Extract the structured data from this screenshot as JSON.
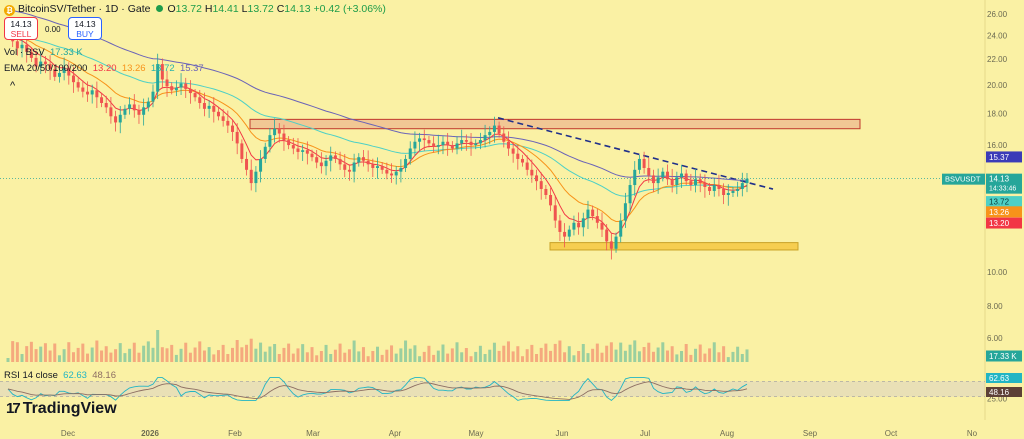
{
  "header": {
    "symbol": "BitcoinSV/Tether · 1D · Gate",
    "open_label": "O",
    "open": "13.72",
    "high_label": "H",
    "high": "14.41",
    "low_label": "L",
    "low": "13.72",
    "close_label": "C",
    "close": "14.13",
    "change": "+0.42 (+3.06%)"
  },
  "trade": {
    "sell_price": "14.13",
    "sell_label": "SELL",
    "buy_price": "14.13",
    "buy_label": "BUY",
    "spread": "0.00"
  },
  "indicators": {
    "vol_label": "Vol · BSV",
    "vol_value": "17.33 K",
    "ema_label": "EMA 20/50/100/200",
    "ema20": "13.20",
    "ema50": "13.26",
    "ema100": "13.72",
    "ema200": "15.37",
    "rsi_label": "RSI 14 close",
    "rsi_value": "62.63",
    "rsi_ma": "48.16"
  },
  "brand": "TradingView",
  "colors": {
    "background": "#faf1a4",
    "up": "#26a69a",
    "down": "#ef5350",
    "ema20": "#f23645",
    "ema50": "#f7931a",
    "ema100": "#4dd0c6",
    "ema200": "#6a63b8",
    "rsi": "#22b5c4",
    "rsi_ma": "#8d6e63",
    "trendline": "#1f2f8a",
    "resistance_box": "#d98a8a",
    "support_box": "#f5c842"
  },
  "chart_data": [
    {
      "type": "candlestick",
      "title": "",
      "y_axis": {
        "ticks": [
          "26.00",
          "24.00",
          "22.00",
          "20.00",
          "18.00",
          "16.00",
          "12.00",
          "10.00",
          "8.00",
          "6.00"
        ],
        "scale": "log"
      },
      "x_axis": {
        "ticks": [
          "Dec",
          "2026",
          "Feb",
          "Mar",
          "Apr",
          "May",
          "Jun",
          "Jul",
          "Aug",
          "Sep",
          "Oct",
          "No"
        ]
      },
      "price_labels": [
        {
          "text": "15.37",
          "series": "ema200"
        },
        {
          "text": "BSVUSDT",
          "series": "last"
        },
        {
          "text": "14.13",
          "series": "last"
        },
        {
          "text": "14:33:46",
          "series": "countdown"
        },
        {
          "text": "13.72",
          "series": "ema100"
        },
        {
          "text": "13.26",
          "series": "ema50"
        },
        {
          "text": "13.20",
          "series": "ema20"
        },
        {
          "text": "17.33 K",
          "series": "volume"
        }
      ],
      "close_series": [
        24.8,
        23.5,
        22.9,
        23.2,
        22.6,
        22.1,
        21.4,
        21.8,
        21.6,
        21.2,
        20.6,
        20.9,
        21.3,
        20.7,
        20.2,
        19.8,
        19.5,
        19.3,
        19.6,
        19.1,
        18.7,
        18.4,
        17.8,
        17.4,
        17.9,
        18.3,
        18.6,
        18.2,
        17.9,
        18.4,
        18.8,
        19.5,
        21.6,
        20.4,
        19.9,
        19.6,
        19.8,
        20.1,
        19.7,
        19.4,
        19.1,
        18.7,
        18.3,
        18.5,
        18.1,
        17.8,
        17.5,
        17.2,
        16.8,
        16.1,
        15.2,
        14.6,
        13.9,
        14.5,
        15.2,
        15.9,
        16.6,
        17.0,
        16.7,
        16.3,
        16.0,
        15.8,
        15.6,
        15.7,
        15.5,
        15.3,
        15.0,
        14.8,
        15.1,
        15.4,
        15.2,
        14.9,
        14.6,
        14.5,
        15.0,
        15.3,
        15.1,
        14.9,
        14.7,
        14.8,
        14.6,
        14.4,
        14.3,
        14.5,
        14.7,
        15.2,
        15.8,
        16.2,
        16.4,
        16.3,
        16.1,
        15.9,
        16.0,
        16.2,
        16.0,
        15.8,
        16.1,
        16.3,
        16.2,
        16.0,
        16.1,
        16.3,
        16.6,
        16.8,
        17.2,
        16.7,
        16.2,
        15.8,
        15.5,
        15.2,
        15.0,
        14.6,
        14.3,
        14.0,
        13.6,
        13.3,
        12.8,
        12.1,
        11.6,
        11.4,
        11.7,
        12.0,
        11.8,
        12.2,
        12.6,
        12.3,
        12.0,
        11.7,
        11.2,
        10.9,
        11.4,
        12.1,
        12.9,
        13.8,
        14.6,
        15.2,
        14.7,
        14.3,
        13.9,
        14.2,
        14.5,
        14.1,
        13.8,
        14.2,
        14.4,
        14.0,
        13.8,
        14.1,
        13.9,
        13.7,
        13.5,
        13.8,
        13.6,
        13.3,
        13.4,
        13.5,
        13.6,
        13.9,
        14.13
      ],
      "ema20_last": 13.2,
      "ema50_last": 13.26,
      "ema100_last": 13.72,
      "ema200_last": 15.37,
      "annotations": [
        {
          "kind": "resistance_box",
          "y_range": [
            17.0,
            17.6
          ]
        },
        {
          "kind": "support_box",
          "y_range": [
            10.85,
            11.15
          ]
        },
        {
          "kind": "dashed_trendline",
          "from_y": 17.7,
          "to_y": 13.9
        }
      ]
    },
    {
      "type": "bar",
      "title": "",
      "series": [
        {
          "name": "Vol · BSV",
          "last": "17.33 K"
        }
      ]
    },
    {
      "type": "line",
      "title": "",
      "y_axis": {
        "ticks": [
          "75.00",
          "25.00"
        ],
        "band": [
          30,
          70
        ]
      },
      "series": [
        {
          "name": "RSI 14 close",
          "last": 62.63
        },
        {
          "name": "RSI MA",
          "last": 48.16
        }
      ]
    }
  ]
}
